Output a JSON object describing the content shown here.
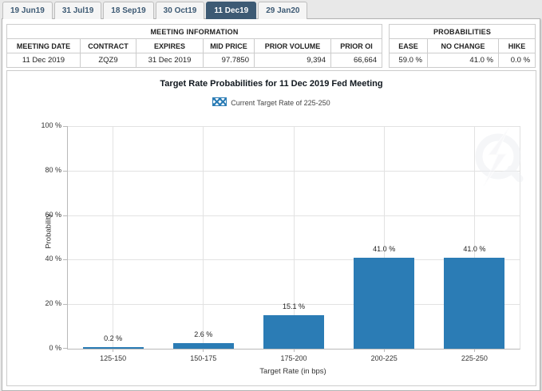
{
  "tabs": [
    {
      "label": "19 Jun19",
      "active": false
    },
    {
      "label": "31 Jul19",
      "active": false
    },
    {
      "label": "18 Sep19",
      "active": false
    },
    {
      "label": "30 Oct19",
      "active": false
    },
    {
      "label": "11 Dec19",
      "active": true
    },
    {
      "label": "29 Jan20",
      "active": false
    }
  ],
  "meeting_info": {
    "title": "MEETING INFORMATION",
    "columns": [
      "MEETING DATE",
      "CONTRACT",
      "EXPIRES",
      "MID PRICE",
      "PRIOR VOLUME",
      "PRIOR OI"
    ],
    "values": [
      "11 Dec 2019",
      "ZQZ9",
      "31 Dec 2019",
      "97.7850",
      "9,394",
      "66,664"
    ],
    "value_align": [
      "c",
      "c",
      "c",
      "r",
      "r",
      "r"
    ]
  },
  "probabilities": {
    "title": "PROBABILITIES",
    "columns": [
      "EASE",
      "NO CHANGE",
      "HIKE"
    ],
    "values": [
      "59.0 %",
      "41.0 %",
      "0.0 %"
    ],
    "value_align": [
      "r",
      "r",
      "r"
    ]
  },
  "chart_data": {
    "type": "bar",
    "title": "Target Rate Probabilities for 11 Dec 2019 Fed Meeting",
    "legend": "Current Target Rate of 225-250",
    "categories": [
      "125-150",
      "150-175",
      "175-200",
      "200-225",
      "225-250"
    ],
    "values": [
      0.2,
      2.6,
      15.1,
      41.0,
      41.0
    ],
    "value_labels": [
      "0.2 %",
      "2.6 %",
      "15.1 %",
      "41.0 %",
      "41.0 %"
    ],
    "hatched_index": 4,
    "xlabel": "Target Rate (in bps)",
    "ylabel": "Probability",
    "ylim": [
      0,
      100
    ],
    "ytick_step": 20,
    "yticks": [
      "0 %",
      "20 %",
      "40 %",
      "60 %",
      "80 %",
      "100 %"
    ],
    "grid": true,
    "legend_position": "top"
  },
  "colors": {
    "bar_fill": "#2b7cb5",
    "active_tab_bg": "#3d5a74",
    "active_tab_text": "#ffffff"
  },
  "icons": {
    "watermark": "q-lightning-logo"
  }
}
